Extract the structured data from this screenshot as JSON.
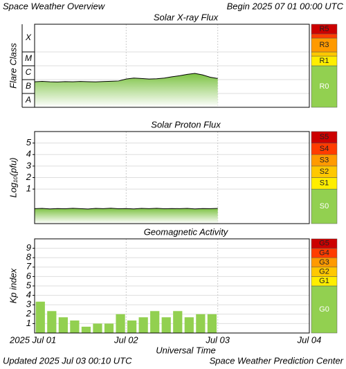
{
  "header": {
    "title": "Space Weather Overview",
    "begin": "Begin 2025 07 01 00:00 UTC"
  },
  "footer": {
    "updated": "Updated 2025 Jul 03 00:10 UTC",
    "credit": "Space Weather Prediction Center"
  },
  "chart_data": [
    {
      "type": "line",
      "title": "Solar X-ray Flux",
      "ylabel": "Flare Class",
      "log_scale": true,
      "grid": true,
      "color": "#000000",
      "fill_color": "#7cc242",
      "xlim": [
        0,
        3
      ],
      "ylim": [
        1e-08,
        0.01
      ],
      "yticks": [
        {
          "value": 1e-08,
          "label": "A"
        },
        {
          "value": 1e-07,
          "label": "B"
        },
        {
          "value": 1e-06,
          "label": "C"
        },
        {
          "value": 1e-05,
          "label": "M"
        },
        {
          "value": 0.0001,
          "label": "X"
        }
      ],
      "x": [
        0,
        0.083,
        0.167,
        0.25,
        0.333,
        0.417,
        0.5,
        0.583,
        0.667,
        0.75,
        0.833,
        0.917,
        1,
        1.083,
        1.167,
        1.25,
        1.333,
        1.417,
        1.5,
        1.583,
        1.667,
        1.75,
        1.833,
        1.917,
        2
      ],
      "values": [
        7e-07,
        7.5e-07,
        7e-07,
        6.8e-07,
        7.2e-07,
        7e-07,
        7.4e-07,
        7.1e-07,
        6.9e-07,
        7.3e-07,
        7.6e-07,
        8e-07,
        1.1e-06,
        1.3e-06,
        1.2e-06,
        1.1e-06,
        1.15e-06,
        1.3e-06,
        1.6e-06,
        1.9e-06,
        2.4e-06,
        2.8e-06,
        2.2e-06,
        1.5e-06,
        1.2e-06
      ],
      "bands": [
        {
          "label": "R0",
          "color": "#92d050",
          "range": [
            1e-08,
            1e-05
          ]
        },
        {
          "label": "R1",
          "color": "#ffee00",
          "range": [
            1e-05,
            5e-05
          ]
        },
        {
          "color": "#ffc800",
          "range": [
            5e-05,
            0.0001
          ]
        },
        {
          "label": "R3",
          "color": "#ff9a00",
          "range": [
            0.0001,
            0.001
          ]
        },
        {
          "color": "#ff3c00",
          "range": [
            0.001,
            0.002
          ]
        },
        {
          "label": "R5",
          "color": "#cc0000",
          "range": [
            0.002,
            0.01
          ]
        }
      ]
    },
    {
      "type": "line",
      "title": "Solar Proton Flux",
      "ylabel": "Log₁₀(pfu)",
      "grid": true,
      "color": "#000000",
      "fill_color": "#7cc242",
      "xlim": [
        0,
        3
      ],
      "ylim": [
        -2,
        6
      ],
      "yticks": [
        1,
        2,
        3,
        4,
        5
      ],
      "x": [
        0,
        0.083,
        0.167,
        0.25,
        0.333,
        0.417,
        0.5,
        0.583,
        0.667,
        0.75,
        0.833,
        0.917,
        1,
        1.083,
        1.167,
        1.25,
        1.333,
        1.417,
        1.5,
        1.583,
        1.667,
        1.75,
        1.833,
        1.917,
        2
      ],
      "values": [
        -0.7,
        -0.68,
        -0.72,
        -0.69,
        -0.71,
        -0.67,
        -0.7,
        -0.73,
        -0.68,
        -0.7,
        -0.66,
        -0.71,
        -0.69,
        -0.72,
        -0.68,
        -0.7,
        -0.67,
        -0.71,
        -0.69,
        -0.7,
        -0.68,
        -0.72,
        -0.69,
        -0.7,
        -0.68
      ],
      "bands": [
        {
          "label": "S0",
          "color": "#92d050",
          "range": [
            -2,
            1
          ]
        },
        {
          "label": "S1",
          "color": "#ffee00",
          "range": [
            1,
            2
          ]
        },
        {
          "label": "S2",
          "color": "#ffc800",
          "range": [
            2,
            3
          ]
        },
        {
          "label": "S3",
          "color": "#ff9a00",
          "range": [
            3,
            4
          ]
        },
        {
          "label": "S4",
          "color": "#ff3c00",
          "range": [
            4,
            5
          ]
        },
        {
          "label": "S5",
          "color": "#cc0000",
          "range": [
            5,
            6
          ]
        }
      ]
    },
    {
      "type": "bar",
      "title": "Geomagnetic Activity",
      "ylabel": "Kp index",
      "xlabel": "Universal Time",
      "grid": true,
      "color": "#92d050",
      "bar_width": 0.1,
      "xlim": [
        0,
        3
      ],
      "ylim": [
        0,
        10
      ],
      "yticks": [
        1,
        2,
        3,
        4,
        5,
        6,
        7,
        8,
        9
      ],
      "xticks": [
        {
          "value": 0,
          "label": "2025 Jul 01"
        },
        {
          "value": 1,
          "label": "Jul 02"
        },
        {
          "value": 2,
          "label": "Jul 03"
        },
        {
          "value": 3,
          "label": "Jul 04"
        }
      ],
      "x": [
        0,
        0.125,
        0.25,
        0.375,
        0.5,
        0.625,
        0.75,
        0.875,
        1,
        1.125,
        1.25,
        1.375,
        1.5,
        1.625,
        1.75,
        1.875
      ],
      "values": [
        3.33,
        2.33,
        1.67,
        1.33,
        0.67,
        1,
        1,
        2,
        1.33,
        1.67,
        2.33,
        1.67,
        2.33,
        1.67,
        2,
        2
      ],
      "bands": [
        {
          "label": "G0",
          "color": "#92d050",
          "range": [
            0,
            5
          ]
        },
        {
          "label": "G1",
          "color": "#ffee00",
          "range": [
            5,
            6
          ]
        },
        {
          "label": "G2",
          "color": "#ffc800",
          "range": [
            6,
            7
          ]
        },
        {
          "label": "G3",
          "color": "#ff9a00",
          "range": [
            7,
            8
          ]
        },
        {
          "label": "G4",
          "color": "#ff3c00",
          "range": [
            8,
            9
          ]
        },
        {
          "label": "G5",
          "color": "#cc0000",
          "range": [
            9,
            10
          ]
        }
      ]
    }
  ]
}
